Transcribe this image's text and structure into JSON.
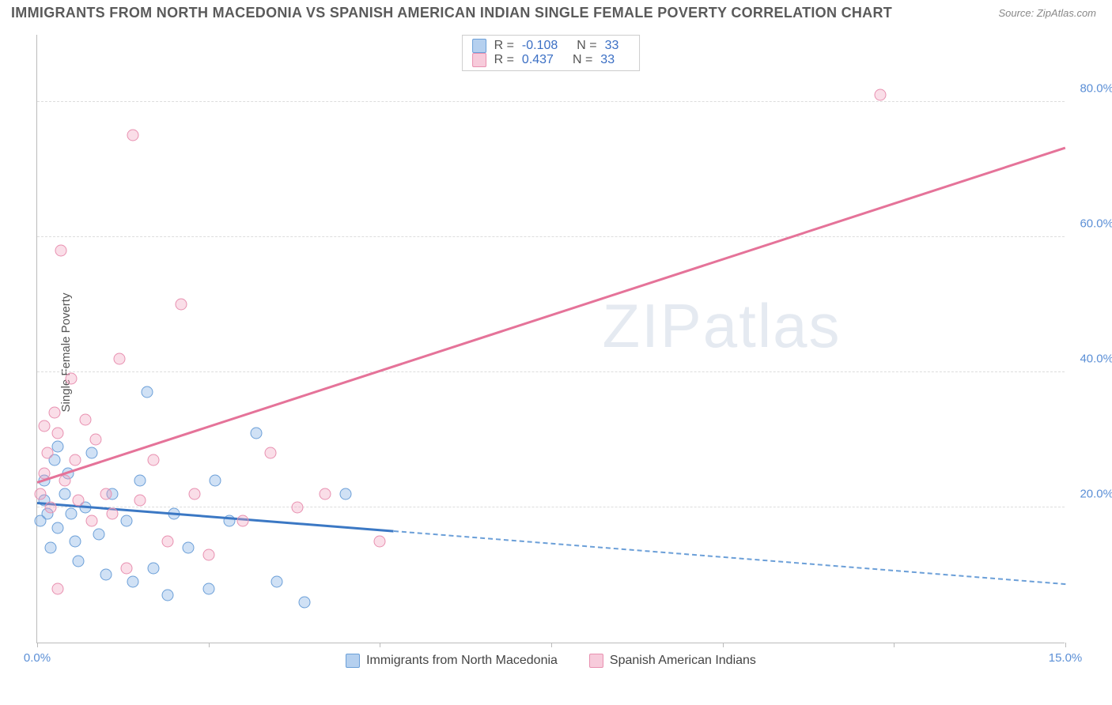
{
  "title": "IMMIGRANTS FROM NORTH MACEDONIA VS SPANISH AMERICAN INDIAN SINGLE FEMALE POVERTY CORRELATION CHART",
  "source": "Source: ZipAtlas.com",
  "ylabel": "Single Female Poverty",
  "watermark_a": "ZIP",
  "watermark_b": "atlas",
  "chart": {
    "type": "scatter",
    "xlim": [
      0,
      15
    ],
    "ylim": [
      0,
      90
    ],
    "x_ticks": [
      0,
      2.5,
      5,
      7.5,
      10,
      12.5,
      15
    ],
    "x_tick_labels": [
      "0.0%",
      "",
      "",
      "",
      "",
      "",
      "15.0%"
    ],
    "y_gridlines": [
      20,
      40,
      60,
      80
    ],
    "y_tick_labels": [
      "20.0%",
      "40.0%",
      "60.0%",
      "80.0%"
    ],
    "colors": {
      "blue_stroke": "#6b9fd8",
      "blue_fill": "rgba(120,170,225,0.35)",
      "pink_stroke": "#e890b0",
      "pink_fill": "rgba(240,160,190,0.35)",
      "blue_line": "#3b78c4",
      "pink_line": "#e57399",
      "axis": "#bbbbbb",
      "grid": "#dddddd",
      "tick_text": "#5b8fd6",
      "title_text": "#5a5a5a"
    },
    "series": [
      {
        "name": "Immigrants from North Macedonia",
        "styleClass": "blue",
        "R": "-0.108",
        "N": "33",
        "regression": {
          "x1": 0,
          "y1": 20.5,
          "x2": 15,
          "y2": 8.5,
          "solid_until_x": 5.2
        },
        "points": [
          [
            0.05,
            18
          ],
          [
            0.1,
            21
          ],
          [
            0.1,
            24
          ],
          [
            0.15,
            19
          ],
          [
            0.2,
            14
          ],
          [
            0.25,
            27
          ],
          [
            0.3,
            29
          ],
          [
            0.3,
            17
          ],
          [
            0.4,
            22
          ],
          [
            0.45,
            25
          ],
          [
            0.5,
            19
          ],
          [
            0.55,
            15
          ],
          [
            0.6,
            12
          ],
          [
            0.7,
            20
          ],
          [
            0.8,
            28
          ],
          [
            0.9,
            16
          ],
          [
            1.0,
            10
          ],
          [
            1.1,
            22
          ],
          [
            1.3,
            18
          ],
          [
            1.4,
            9
          ],
          [
            1.5,
            24
          ],
          [
            1.6,
            37
          ],
          [
            1.7,
            11
          ],
          [
            1.9,
            7
          ],
          [
            2.0,
            19
          ],
          [
            2.2,
            14
          ],
          [
            2.5,
            8
          ],
          [
            2.6,
            24
          ],
          [
            2.8,
            18
          ],
          [
            3.2,
            31
          ],
          [
            3.5,
            9
          ],
          [
            3.9,
            6
          ],
          [
            4.5,
            22
          ]
        ]
      },
      {
        "name": "Spanish American Indians",
        "styleClass": "pink",
        "R": "0.437",
        "N": "33",
        "regression": {
          "x1": 0,
          "y1": 23.5,
          "x2": 15,
          "y2": 73,
          "solid_until_x": 15
        },
        "points": [
          [
            0.05,
            22
          ],
          [
            0.1,
            25
          ],
          [
            0.1,
            32
          ],
          [
            0.15,
            28
          ],
          [
            0.2,
            20
          ],
          [
            0.25,
            34
          ],
          [
            0.3,
            31
          ],
          [
            0.3,
            8
          ],
          [
            0.35,
            58
          ],
          [
            0.4,
            24
          ],
          [
            0.5,
            39
          ],
          [
            0.55,
            27
          ],
          [
            0.6,
            21
          ],
          [
            0.7,
            33
          ],
          [
            0.8,
            18
          ],
          [
            0.85,
            30
          ],
          [
            1.0,
            22
          ],
          [
            1.1,
            19
          ],
          [
            1.2,
            42
          ],
          [
            1.3,
            11
          ],
          [
            1.4,
            75
          ],
          [
            1.5,
            21
          ],
          [
            1.7,
            27
          ],
          [
            1.9,
            15
          ],
          [
            2.1,
            50
          ],
          [
            2.3,
            22
          ],
          [
            2.5,
            13
          ],
          [
            3.0,
            18
          ],
          [
            3.4,
            28
          ],
          [
            3.8,
            20
          ],
          [
            4.2,
            22
          ],
          [
            5.0,
            15
          ],
          [
            12.3,
            81
          ]
        ]
      }
    ]
  },
  "legend_top_labels": {
    "R": "R =",
    "N": "N ="
  },
  "legend_bottom": [
    {
      "styleClass": "blue",
      "label": "Immigrants from North Macedonia"
    },
    {
      "styleClass": "pink",
      "label": "Spanish American Indians"
    }
  ]
}
